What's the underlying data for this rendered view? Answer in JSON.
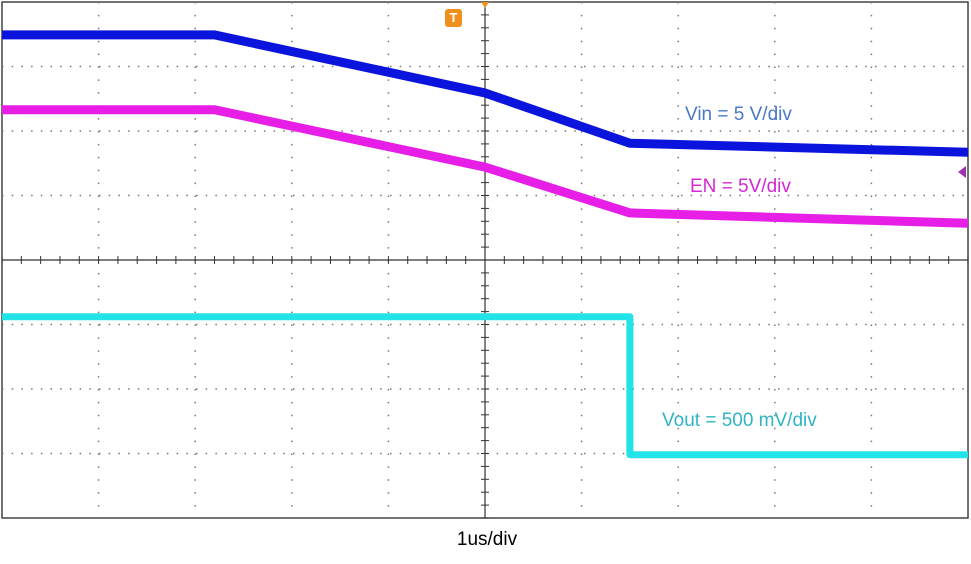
{
  "chart_data": {
    "type": "line",
    "x": [
      0,
      2.2,
      5,
      6.5,
      6.5,
      10
    ],
    "xlim": [
      0,
      10
    ],
    "ylim": [
      0,
      8
    ],
    "xlabel": "1us/div",
    "trigger_label": "T",
    "series": [
      {
        "name": "Vin = 5 V/div",
        "color": "#0a14dc",
        "label_color": "#4a78c8",
        "values": [
          7.49,
          7.49,
          6.59,
          5.81,
          5.81,
          5.67
        ]
      },
      {
        "name": "EN = 5V/div",
        "color": "#e61ee6",
        "label_color": "#d428d4",
        "values": [
          6.33,
          6.33,
          5.44,
          4.73,
          4.73,
          4.57
        ]
      },
      {
        "name": "Vout = 500 mV/div",
        "color": "#22e4e8",
        "label_color": "#30b4c4",
        "values": [
          3.12,
          3.12,
          3.12,
          3.12,
          0.98,
          0.98
        ]
      }
    ]
  }
}
